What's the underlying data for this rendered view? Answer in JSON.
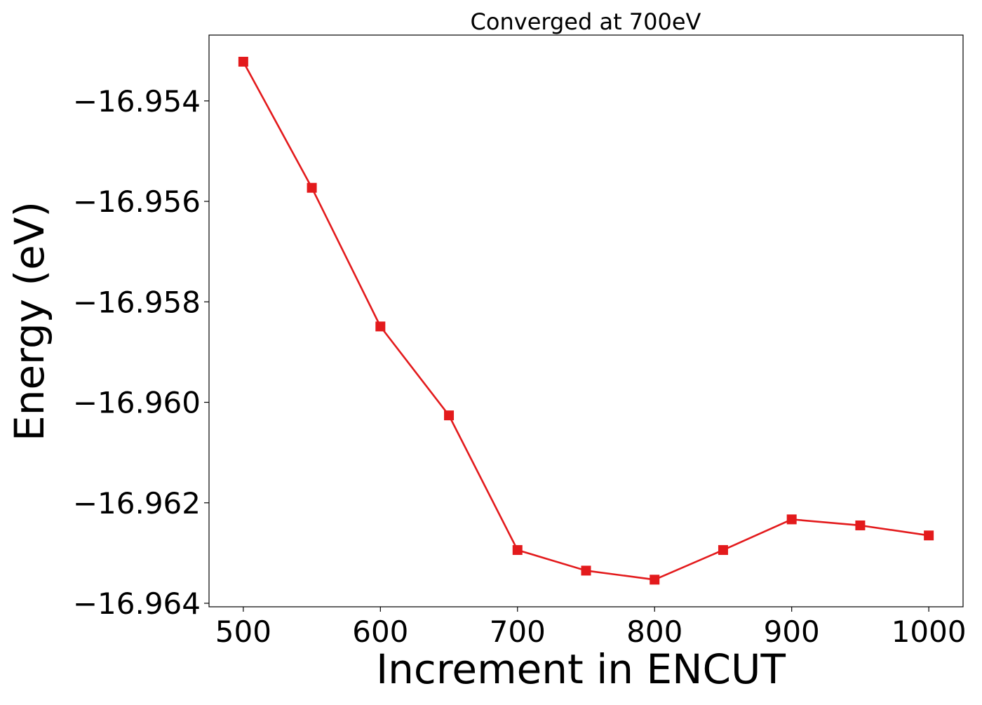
{
  "chart_data": {
    "type": "line",
    "title": "Converged at 700eV",
    "xlabel": "Increment in ENCUT",
    "ylabel": "Energy (eV)",
    "x": [
      500,
      550,
      600,
      650,
      700,
      750,
      800,
      850,
      900,
      950,
      1000
    ],
    "series": [
      {
        "values": [
          -16.95322,
          -16.95573,
          -16.95849,
          -16.96026,
          -16.96294,
          -16.96335,
          -16.96353,
          -16.96294,
          -16.96233,
          -16.96245,
          -16.96265
        ],
        "color": "#e31a1c",
        "marker": "square"
      }
    ],
    "xlim": [
      475,
      1025
    ],
    "ylim": [
      -16.96407,
      -16.95269
    ],
    "xticks": [
      500,
      600,
      700,
      800,
      900,
      1000
    ],
    "xtick_labels": [
      "500",
      "600",
      "700",
      "800",
      "900",
      "1000"
    ],
    "yticks": [
      -16.954,
      -16.956,
      -16.958,
      -16.96,
      -16.962,
      -16.964
    ],
    "ytick_labels": [
      "−16.954",
      "−16.956",
      "−16.958",
      "−16.960",
      "−16.962",
      "−16.964"
    ],
    "grid": false,
    "legend": "none"
  }
}
